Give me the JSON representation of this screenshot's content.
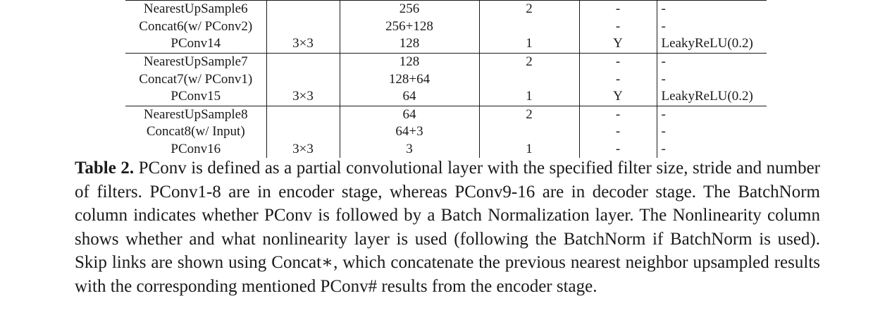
{
  "table": {
    "rows": [
      {
        "layer": "NearestUpSample6",
        "filter": "",
        "channels": "256",
        "stride": "2",
        "batchnorm": "-",
        "nonlinearity": "-",
        "group_start": true
      },
      {
        "layer": "Concat6(w/ PConv2)",
        "filter": "",
        "channels": "256+128",
        "stride": "",
        "batchnorm": "-",
        "nonlinearity": "-",
        "group_start": false
      },
      {
        "layer": "PConv14",
        "filter": "3×3",
        "channels": "128",
        "stride": "1",
        "batchnorm": "Y",
        "nonlinearity": "LeakyReLU(0.2)",
        "group_start": false
      },
      {
        "layer": "NearestUpSample7",
        "filter": "",
        "channels": "128",
        "stride": "2",
        "batchnorm": "-",
        "nonlinearity": "-",
        "group_start": true
      },
      {
        "layer": "Concat7(w/ PConv1)",
        "filter": "",
        "channels": "128+64",
        "stride": "",
        "batchnorm": "-",
        "nonlinearity": "-",
        "group_start": false
      },
      {
        "layer": "PConv15",
        "filter": "3×3",
        "channels": "64",
        "stride": "1",
        "batchnorm": "Y",
        "nonlinearity": "LeakyReLU(0.2)",
        "group_start": false
      },
      {
        "layer": "NearestUpSample8",
        "filter": "",
        "channels": "64",
        "stride": "2",
        "batchnorm": "-",
        "nonlinearity": "-",
        "group_start": true
      },
      {
        "layer": "Concat8(w/ Input)",
        "filter": "",
        "channels": "64+3",
        "stride": "",
        "batchnorm": "-",
        "nonlinearity": "-",
        "group_start": false
      },
      {
        "layer": "PConv16",
        "filter": "3×3",
        "channels": "3",
        "stride": "1",
        "batchnorm": "-",
        "nonlinearity": "-",
        "group_start": false
      }
    ]
  },
  "caption": {
    "label": "Table 2.",
    "text": "PConv is defined as a partial convolutional layer with the specified filter size, stride and number of filters. PConv1-8 are in encoder stage, whereas PConv9-16 are in decoder stage. The BatchNorm column indicates whether PConv is followed by a Batch Normalization layer. The Nonlinearity column shows whether and what nonlinearity layer is used (following the BatchNorm if BatchNorm is used). Skip links are shown using Concat∗, which concatenate the previous nearest neighbor upsampled results with the corresponding mentioned PConv# results from the encoder stage."
  }
}
